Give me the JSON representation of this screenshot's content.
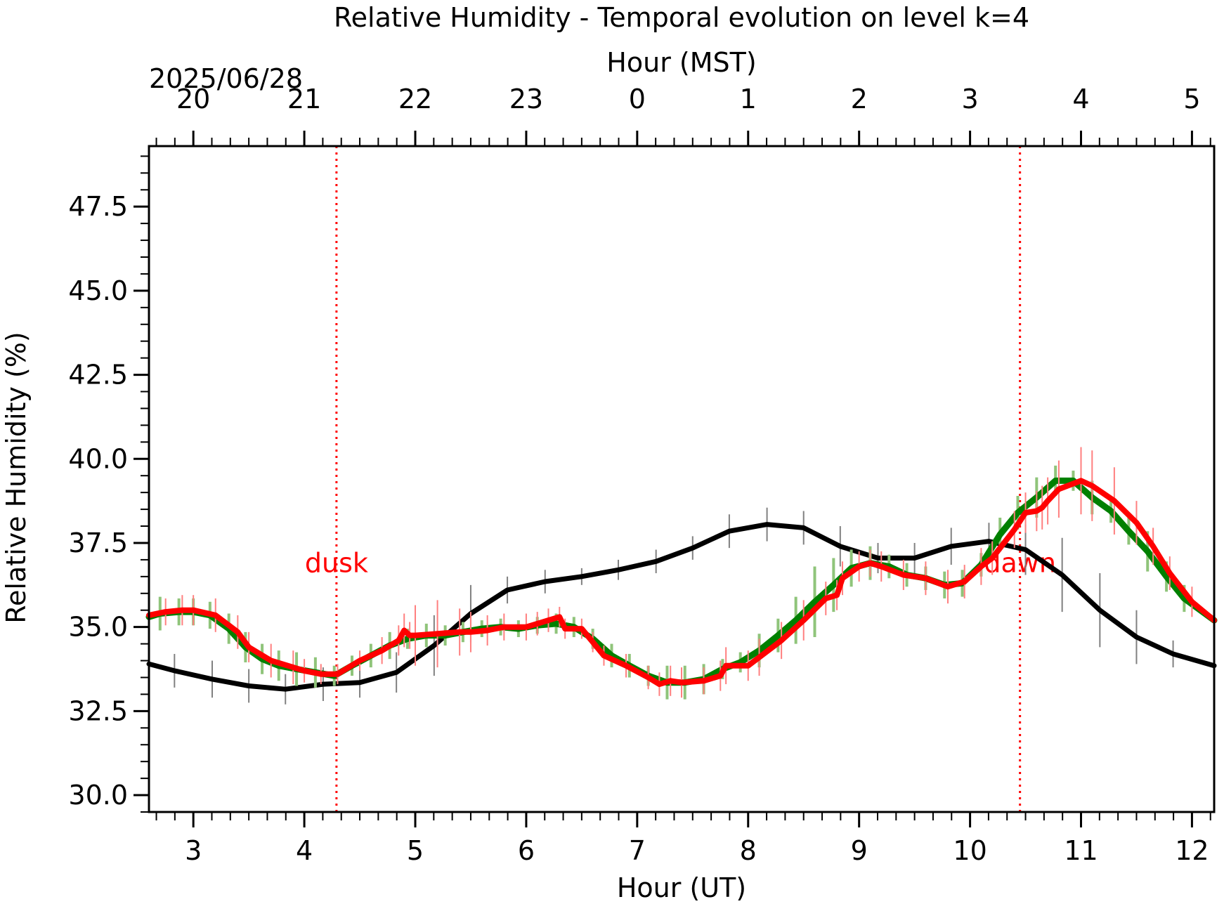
{
  "chart_data": {
    "type": "line",
    "title": "Relative Humidity - Temporal evolution on level k=4",
    "xlabel": "Hour (UT)",
    "ylabel": "Relative Humidity (%)",
    "top_xlabel": "Hour (MST)",
    "date_label": "2025/06/28",
    "xlim": [
      2.6,
      12.2
    ],
    "ylim": [
      29.5,
      49.3
    ],
    "bottom_ticks": [
      {
        "value": 3,
        "label": "3"
      },
      {
        "value": 4,
        "label": "4"
      },
      {
        "value": 5,
        "label": "5"
      },
      {
        "value": 6,
        "label": "6"
      },
      {
        "value": 7,
        "label": "7"
      },
      {
        "value": 8,
        "label": "8"
      },
      {
        "value": 9,
        "label": "9"
      },
      {
        "value": 10,
        "label": "10"
      },
      {
        "value": 11,
        "label": "11"
      },
      {
        "value": 12,
        "label": "12"
      }
    ],
    "top_ticks": [
      {
        "value": 3,
        "label": "20"
      },
      {
        "value": 4,
        "label": "21"
      },
      {
        "value": 5,
        "label": "22"
      },
      {
        "value": 6,
        "label": "23"
      },
      {
        "value": 7,
        "label": "0"
      },
      {
        "value": 8,
        "label": "1"
      },
      {
        "value": 9,
        "label": "2"
      },
      {
        "value": 10,
        "label": "3"
      },
      {
        "value": 11,
        "label": "4"
      },
      {
        "value": 12,
        "label": "5"
      }
    ],
    "y_ticks": [
      {
        "value": 30.0,
        "label": "30.0"
      },
      {
        "value": 32.5,
        "label": "32.5"
      },
      {
        "value": 35.0,
        "label": "35.0"
      },
      {
        "value": 37.5,
        "label": "37.5"
      },
      {
        "value": 40.0,
        "label": "40.0"
      },
      {
        "value": 42.5,
        "label": "42.5"
      },
      {
        "value": 45.0,
        "label": "45.0"
      },
      {
        "value": 47.5,
        "label": "47.5"
      }
    ],
    "events": [
      {
        "label": "dusk",
        "x": 4.29,
        "y": 36.9
      },
      {
        "label": "dawn",
        "x": 10.45,
        "y": 36.9
      }
    ],
    "colors": {
      "black_series": "#000000",
      "green_series": "#008000",
      "red_series": "#ff0000",
      "green_errorbars": "#8fc47a",
      "red_errorbars": "#ff7f7f",
      "gray_errorbars": "#808080",
      "event_lines": "#ff0000"
    },
    "series": [
      {
        "color": "#000000",
        "x": [
          2.6,
          2.83,
          3.17,
          3.5,
          3.83,
          4.17,
          4.5,
          4.83,
          5.17,
          5.5,
          5.83,
          6.17,
          6.5,
          6.83,
          7.17,
          7.5,
          7.83,
          8.17,
          8.5,
          8.83,
          9.17,
          9.5,
          9.83,
          10.17,
          10.5,
          10.83,
          11.17,
          11.5,
          11.83,
          12.2
        ],
        "y": [
          33.9,
          33.7,
          33.45,
          33.25,
          33.15,
          33.3,
          33.35,
          33.65,
          34.45,
          35.4,
          36.1,
          36.35,
          36.5,
          36.7,
          36.95,
          37.35,
          37.85,
          38.05,
          37.95,
          37.4,
          37.05,
          37.05,
          37.4,
          37.55,
          37.3,
          36.55,
          35.5,
          34.7,
          34.2,
          33.85
        ],
        "err": [
          0.0,
          0.5,
          0.55,
          0.5,
          0.45,
          0.5,
          0.45,
          0.6,
          0.9,
          0.85,
          0.4,
          0.35,
          0.25,
          0.3,
          0.35,
          0.35,
          0.5,
          0.5,
          0.5,
          0.6,
          0.45,
          0.45,
          0.55,
          0.55,
          0.75,
          1.1,
          1.1,
          0.8,
          0.4,
          0.0
        ]
      },
      {
        "color": "#008000",
        "x": [
          2.6,
          2.7,
          2.87,
          3.0,
          3.15,
          3.32,
          3.47,
          3.62,
          3.77,
          3.93,
          4.1,
          4.27,
          4.43,
          4.6,
          4.77,
          4.93,
          5.1,
          5.27,
          5.43,
          5.6,
          5.77,
          5.93,
          6.1,
          6.27,
          6.43,
          6.6,
          6.77,
          6.93,
          7.1,
          7.27,
          7.43,
          7.6,
          7.77,
          7.93,
          8.1,
          8.27,
          8.43,
          8.6,
          8.77,
          8.93,
          9.1,
          9.27,
          9.43,
          9.6,
          9.77,
          9.93,
          10.1,
          10.27,
          10.43,
          10.6,
          10.77,
          10.93,
          11.1,
          11.27,
          11.43,
          11.6,
          11.77,
          11.93,
          12.2
        ],
        "y": [
          35.3,
          35.4,
          35.45,
          35.45,
          35.35,
          34.95,
          34.4,
          34.05,
          33.85,
          33.75,
          33.65,
          33.55,
          33.85,
          34.15,
          34.45,
          34.65,
          34.75,
          34.75,
          34.85,
          34.95,
          35.0,
          34.95,
          35.05,
          35.1,
          35.0,
          34.65,
          34.15,
          33.85,
          33.55,
          33.35,
          33.35,
          33.45,
          33.75,
          33.95,
          34.3,
          34.75,
          35.2,
          35.75,
          36.25,
          36.75,
          36.9,
          36.8,
          36.55,
          36.45,
          36.25,
          36.3,
          36.85,
          37.75,
          38.4,
          38.85,
          39.35,
          39.35,
          38.85,
          38.45,
          37.85,
          37.25,
          36.5,
          35.85,
          35.2
        ],
        "err": [
          0.0,
          0.5,
          0.4,
          0.4,
          0.4,
          0.45,
          0.45,
          0.45,
          0.45,
          0.5,
          0.45,
          0.3,
          0.3,
          0.35,
          0.4,
          0.3,
          0.35,
          0.3,
          0.3,
          0.25,
          0.25,
          0.25,
          0.25,
          0.3,
          0.3,
          0.3,
          0.35,
          0.35,
          0.3,
          0.5,
          0.5,
          0.45,
          0.3,
          0.3,
          0.5,
          0.5,
          0.7,
          1.05,
          0.8,
          0.55,
          0.5,
          0.35,
          0.35,
          0.35,
          0.4,
          0.4,
          0.35,
          0.5,
          0.5,
          0.6,
          0.45,
          0.3,
          0.5,
          0.35,
          0.4,
          0.6,
          0.45,
          0.4,
          0.0
        ]
      },
      {
        "color": "#ff0000",
        "x": [
          2.6,
          2.75,
          2.9,
          3.0,
          3.2,
          3.4,
          3.5,
          3.7,
          3.9,
          4.0,
          4.15,
          4.3,
          4.5,
          4.7,
          4.85,
          4.9,
          4.95,
          5.0,
          5.2,
          5.4,
          5.5,
          5.65,
          5.8,
          6.0,
          6.1,
          6.2,
          6.3,
          6.35,
          6.5,
          6.6,
          6.7,
          6.9,
          7.1,
          7.2,
          7.3,
          7.4,
          7.6,
          7.75,
          7.8,
          8.0,
          8.1,
          8.3,
          8.5,
          8.7,
          8.8,
          8.85,
          9.0,
          9.1,
          9.2,
          9.4,
          9.6,
          9.8,
          9.95,
          10.1,
          10.2,
          10.4,
          10.5,
          10.6,
          10.65,
          10.7,
          10.8,
          11.0,
          11.1,
          11.3,
          11.5,
          11.65,
          11.8,
          12.0,
          12.2
        ],
        "y": [
          35.35,
          35.45,
          35.5,
          35.5,
          35.35,
          34.85,
          34.4,
          34.0,
          33.8,
          33.7,
          33.6,
          33.6,
          34.0,
          34.3,
          34.6,
          34.9,
          34.75,
          34.75,
          34.8,
          34.85,
          34.85,
          34.9,
          35.0,
          35.0,
          35.1,
          35.2,
          35.3,
          34.95,
          34.95,
          34.55,
          34.15,
          33.85,
          33.5,
          33.3,
          33.4,
          33.35,
          33.4,
          33.55,
          33.85,
          33.85,
          34.1,
          34.6,
          35.2,
          35.85,
          35.95,
          36.45,
          36.8,
          36.9,
          36.8,
          36.55,
          36.45,
          36.2,
          36.35,
          36.8,
          37.05,
          37.9,
          38.4,
          38.45,
          38.55,
          38.75,
          39.1,
          39.35,
          39.2,
          38.75,
          38.1,
          37.4,
          36.6,
          35.75,
          35.2
        ],
        "err": [
          0.0,
          0.4,
          0.45,
          0.45,
          0.5,
          0.5,
          0.45,
          0.5,
          0.5,
          0.35,
          0.3,
          0.3,
          0.3,
          0.4,
          0.45,
          0.5,
          0.4,
          0.9,
          1.0,
          0.7,
          0.6,
          0.45,
          0.4,
          0.4,
          0.35,
          0.35,
          0.3,
          0.3,
          0.3,
          0.3,
          0.3,
          0.35,
          0.35,
          0.35,
          0.45,
          0.45,
          0.4,
          0.45,
          0.55,
          0.45,
          0.55,
          0.55,
          0.6,
          0.5,
          0.45,
          0.5,
          0.45,
          0.4,
          0.45,
          0.45,
          0.5,
          0.5,
          0.5,
          0.55,
          0.5,
          0.55,
          0.6,
          0.6,
          0.65,
          0.7,
          0.85,
          1.0,
          1.05,
          1.0,
          0.65,
          0.55,
          0.5,
          0.45,
          0.0
        ]
      }
    ]
  }
}
